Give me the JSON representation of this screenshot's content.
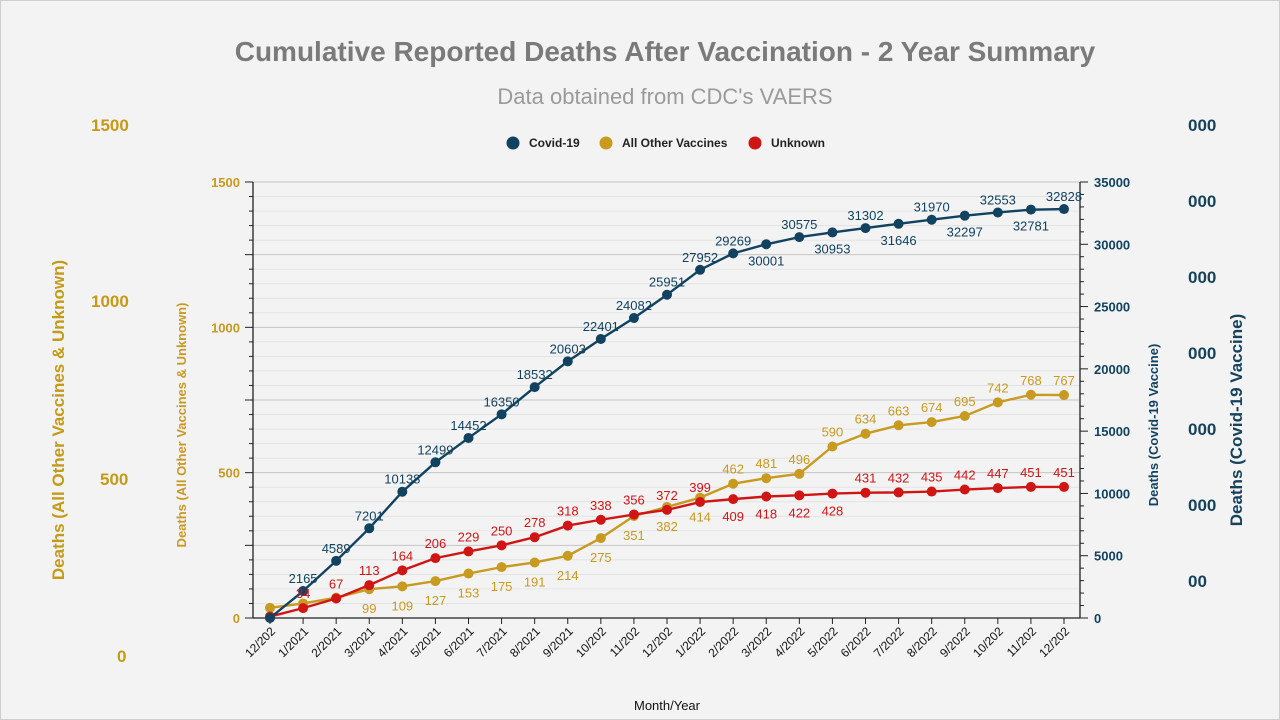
{
  "chart_data": {
    "type": "line",
    "title": "Cumulative Reported Deaths After Vaccination - 2 Year Summary",
    "subtitle": "Data obtained from CDC's VAERS",
    "xlabel": "Month/Year",
    "ylabel_left": "Deaths (All Other Vaccines & Unknown)",
    "ylabel_right": "Deaths (Covid-19 Vaccine)",
    "ylim_left": [
      0,
      1500
    ],
    "ylim_right": [
      0,
      35000
    ],
    "left_ticks": [
      "0",
      "500",
      "1000",
      "1500"
    ],
    "right_ticks": [
      "0",
      "5000",
      "10000",
      "15000",
      "20000",
      "25000",
      "30000",
      "35000"
    ],
    "categories": [
      "12/202",
      "1/2021",
      "2/2021",
      "3/2021",
      "4/2021",
      "5/2021",
      "6/2021",
      "7/2021",
      "8/2021",
      "9/2021",
      "10/202",
      "11/202",
      "12/202",
      "1/2022",
      "2/2022",
      "3/2022",
      "4/2022",
      "5/2022",
      "6/2022",
      "7/2022",
      "8/2022",
      "9/2022",
      "10/202",
      "11/202",
      "12/202"
    ],
    "legend_position": "top-center",
    "series": [
      {
        "name": "Covid-19",
        "axis": "right",
        "color": "#11425f",
        "values": [
          0,
          2165,
          4589,
          7201,
          10138,
          12499,
          14452,
          16350,
          18532,
          20603,
          22401,
          24082,
          25951,
          27952,
          29269,
          30001,
          30575,
          30953,
          31302,
          31646,
          31970,
          32297,
          32553,
          32781,
          32828
        ],
        "labels": [
          "",
          "2165",
          "4589",
          "7201",
          "10138",
          "12499",
          "14452",
          "16350",
          "18532",
          "20603",
          "22401",
          "24082",
          "25951",
          "27952",
          "29269",
          "30001",
          "30575",
          "30953",
          "31302",
          "31646",
          "31970",
          "32297",
          "32553",
          "32781",
          "32828"
        ]
      },
      {
        "name": "All Other Vaccines",
        "axis": "left",
        "color": "#c89a1f",
        "values": [
          35,
          50,
          70,
          99,
          109,
          127,
          153,
          175,
          191,
          214,
          275,
          351,
          382,
          414,
          462,
          481,
          496,
          590,
          634,
          663,
          674,
          695,
          742,
          768,
          767
        ],
        "labels": [
          "",
          "",
          "",
          "99",
          "109",
          "127",
          "153",
          "175",
          "191",
          "214",
          "275",
          "351",
          "382",
          "414",
          "462",
          "481",
          "496",
          "590",
          "634",
          "663",
          "674",
          "695",
          "742",
          "768",
          "767"
        ]
      },
      {
        "name": "Unknown",
        "axis": "left",
        "color": "#d01515",
        "values": [
          5,
          34,
          67,
          113,
          164,
          206,
          229,
          250,
          278,
          318,
          338,
          356,
          372,
          399,
          409,
          418,
          422,
          428,
          431,
          432,
          435,
          442,
          447,
          451,
          451
        ],
        "labels": [
          "",
          "34",
          "67",
          "113",
          "164",
          "206",
          "229",
          "250",
          "278",
          "318",
          "338",
          "356",
          "372",
          "399",
          "409",
          "418",
          "422",
          "428",
          "431",
          "432",
          "435",
          "442",
          "447",
          "451",
          "451"
        ]
      }
    ],
    "ghost_left_ticks": [
      "1500",
      "1000",
      "500",
      "0"
    ],
    "ghost_right_ticks": [
      "000",
      "000",
      "000",
      "000",
      "000",
      "000",
      "00"
    ]
  }
}
